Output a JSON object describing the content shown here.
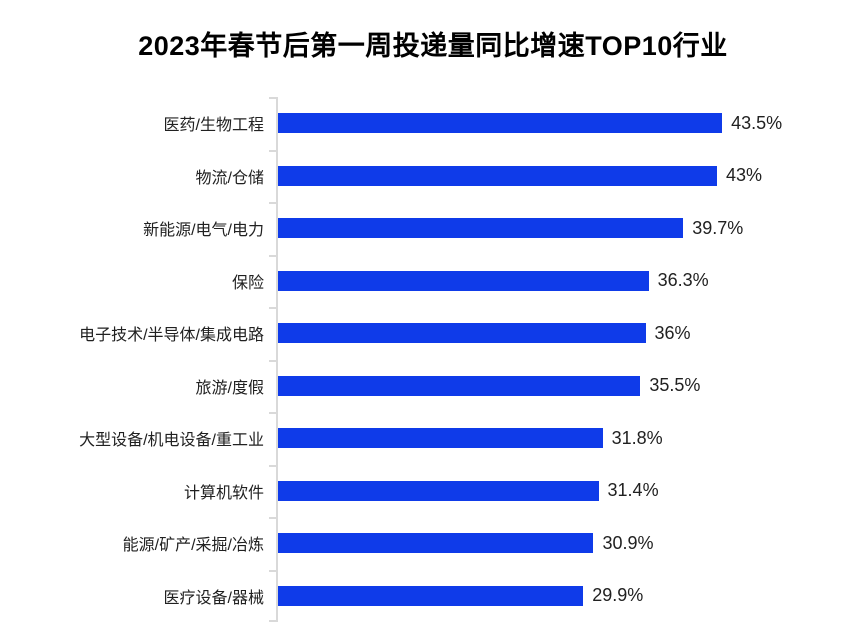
{
  "title": "2023年春节后第一周投递量同比增速TOP10行业",
  "chart_data": {
    "type": "bar",
    "orientation": "horizontal",
    "title": "2023年春节后第一周投递量同比增速TOP10行业",
    "categories": [
      "医药/生物工程",
      "物流/仓储",
      "新能源/电气/电力",
      "保险",
      "电子技术/半导体/集成电路",
      "旅游/度假",
      "大型设备/机电设备/重工业",
      "计算机软件",
      "能源/矿产/采掘/冶炼",
      "医疗设备/器械"
    ],
    "values": [
      43.5,
      43,
      39.7,
      36.3,
      36,
      35.5,
      31.8,
      31.4,
      30.9,
      29.9
    ],
    "value_labels": [
      "43.5%",
      "43%",
      "39.7%",
      "36.3%",
      "36%",
      "35.5%",
      "31.8%",
      "31.4%",
      "30.9%",
      "29.9%"
    ],
    "xlabel": "",
    "ylabel": "",
    "xlim": [
      0,
      57.6
    ],
    "grid": false,
    "legend": false,
    "bar_color": "#0f3be9",
    "axis_color": "#d9d9d9",
    "label_color": "#212121"
  }
}
